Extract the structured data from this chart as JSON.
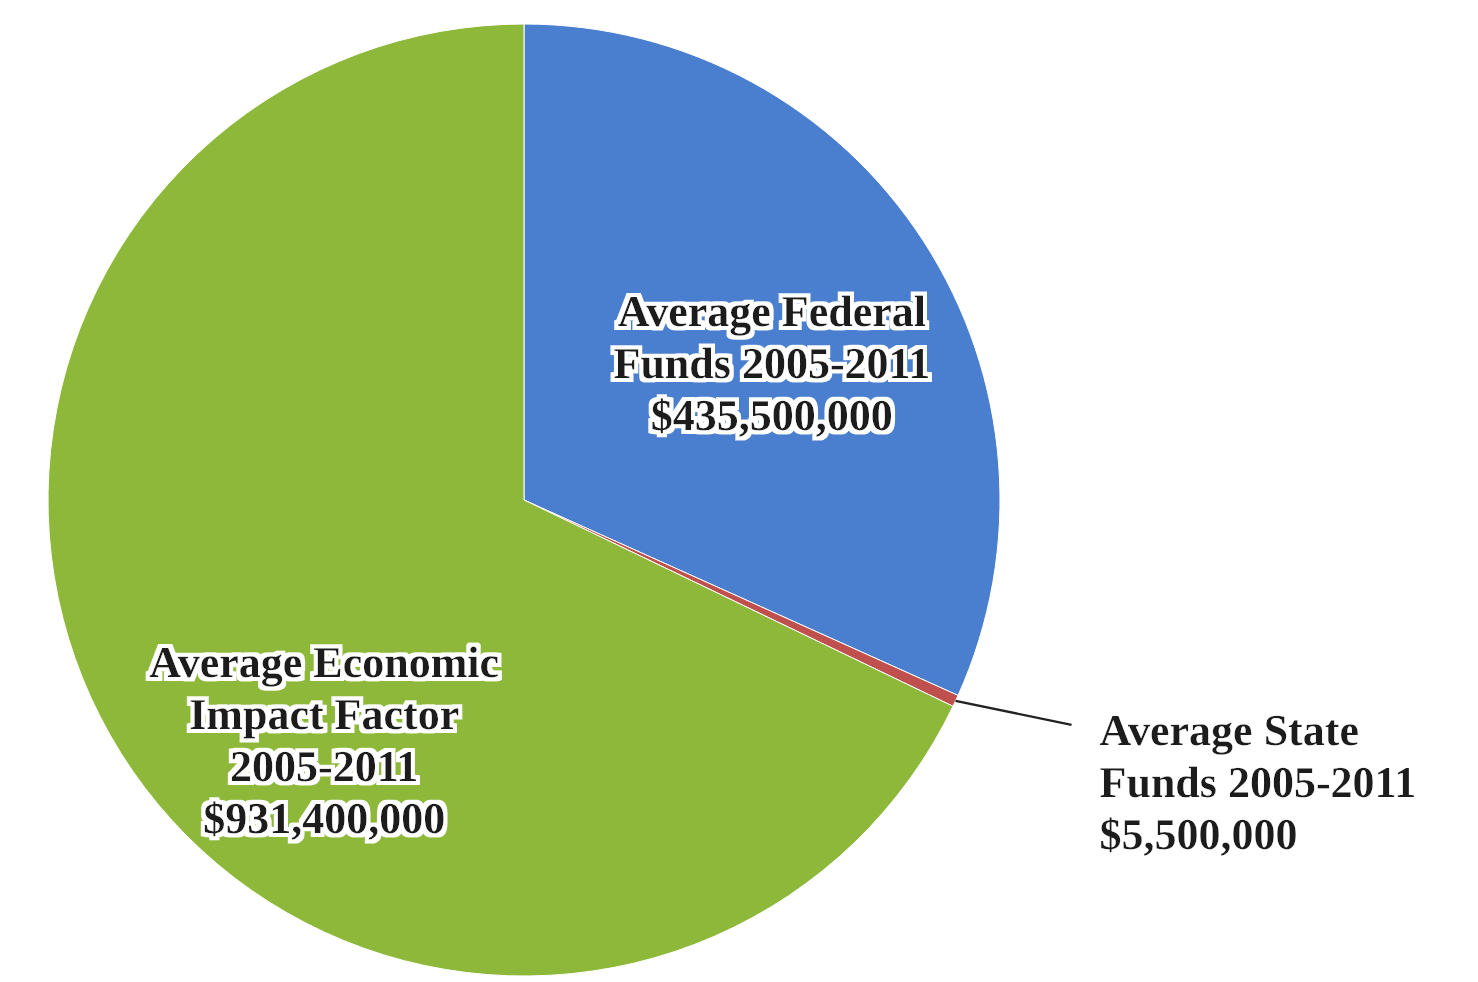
{
  "chart_data": {
    "type": "pie",
    "categories": [
      "Average Federal Funds 2005-2011",
      "Average State Funds 2005-2011",
      "Average Economic Impact Factor 2005-2011"
    ],
    "values": [
      435500000,
      5500000,
      931400000
    ],
    "value_labels": [
      "$435,500,000",
      "$5,500,000",
      "$931,400,000"
    ],
    "colors": [
      "#4a7fcf",
      "#c0504d",
      "#8db83a"
    ]
  }
}
